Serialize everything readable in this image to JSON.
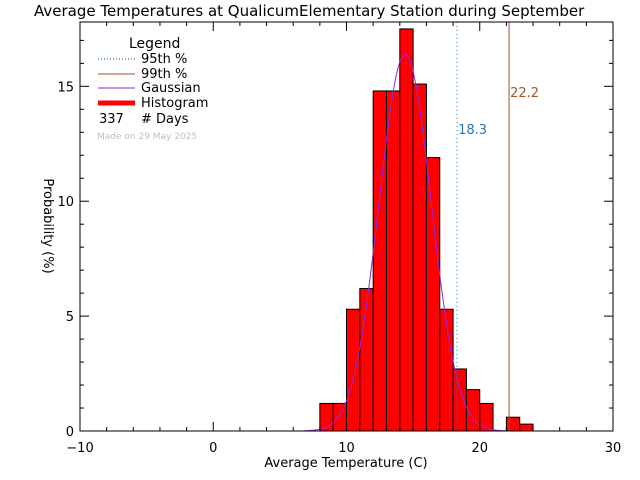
{
  "chart_data": {
    "type": "bar",
    "title": "Average Temperatures at QualicumElementary Station during September",
    "xlabel": "Average Temperature (C)",
    "ylabel": "Probability  (%)",
    "xlim": [
      -10,
      30
    ],
    "ylim": [
      0,
      17.8
    ],
    "x_ticks": [
      -10,
      0,
      10,
      20,
      30
    ],
    "y_ticks": [
      0,
      5,
      10,
      15
    ],
    "x_tick_labels": [
      "−10",
      "0",
      "10",
      "20",
      "30"
    ],
    "y_tick_labels": [
      "0",
      "5",
      "10",
      "15"
    ],
    "bin_width": 1,
    "histogram": {
      "bin_starts": [
        8,
        9,
        10,
        11,
        12,
        13,
        14,
        15,
        16,
        17,
        18,
        19,
        20,
        21,
        22,
        23
      ],
      "values": [
        1.2,
        1.2,
        5.3,
        6.2,
        14.8,
        14.8,
        17.5,
        15.1,
        11.9,
        5.3,
        2.7,
        1.8,
        1.2,
        0,
        0.6,
        0.3
      ]
    },
    "gaussian": {
      "mean": 14.4,
      "sigma": 1.96,
      "peak": 16.4,
      "x_range": [
        6.8,
        22.0
      ]
    },
    "percentile_95": {
      "value": 18.3,
      "label": "18.3",
      "color": "#1e78be"
    },
    "percentile_99": {
      "value": 22.2,
      "label": "22.2",
      "color": "#a0522d"
    },
    "legend": {
      "title": "Legend",
      "placement": "top-left",
      "items": [
        {
          "label": "95th %",
          "style": "dotted",
          "color": "#1e78be"
        },
        {
          "label": "99th %",
          "style": "solid",
          "color": "#a0522d"
        },
        {
          "label": "Gaussian",
          "style": "solid",
          "color": "#8a2be2"
        },
        {
          "label": "Histogram",
          "style": "thick",
          "color": "#ff0000"
        }
      ],
      "days_count": "337",
      "days_label": "# Days"
    },
    "footnote": "Made on 29 May 2025",
    "colors": {
      "bar_fill": "#ff0000",
      "bar_edge": "#000000",
      "gaussian": "#8a2be2"
    }
  }
}
